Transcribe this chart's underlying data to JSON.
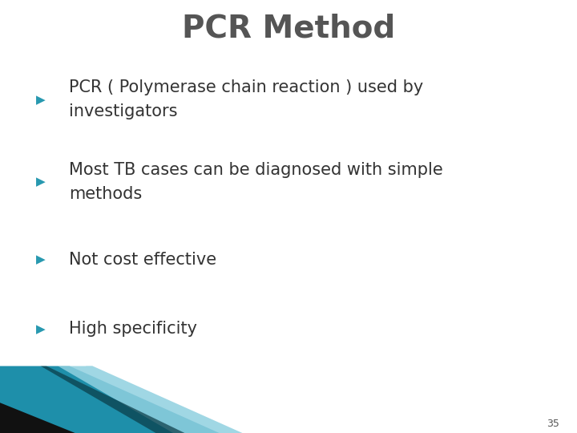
{
  "title": "PCR Method",
  "title_color": "#555555",
  "title_fontsize": 28,
  "background_color": "#ffffff",
  "bullet_color": "#2899b0",
  "text_color": "#333333",
  "bullet_fontsize": 15,
  "page_number": "35",
  "bullets": [
    {
      "line1": "PCR ( Polymerase chain reaction ) used by",
      "line2": "investigators"
    },
    {
      "line1": "Most TB cases can be diagnosed with simple",
      "line2": "methods"
    },
    {
      "line1": "Not cost effective",
      "line2": null
    },
    {
      "line1": "High specificity",
      "line2": null
    }
  ]
}
